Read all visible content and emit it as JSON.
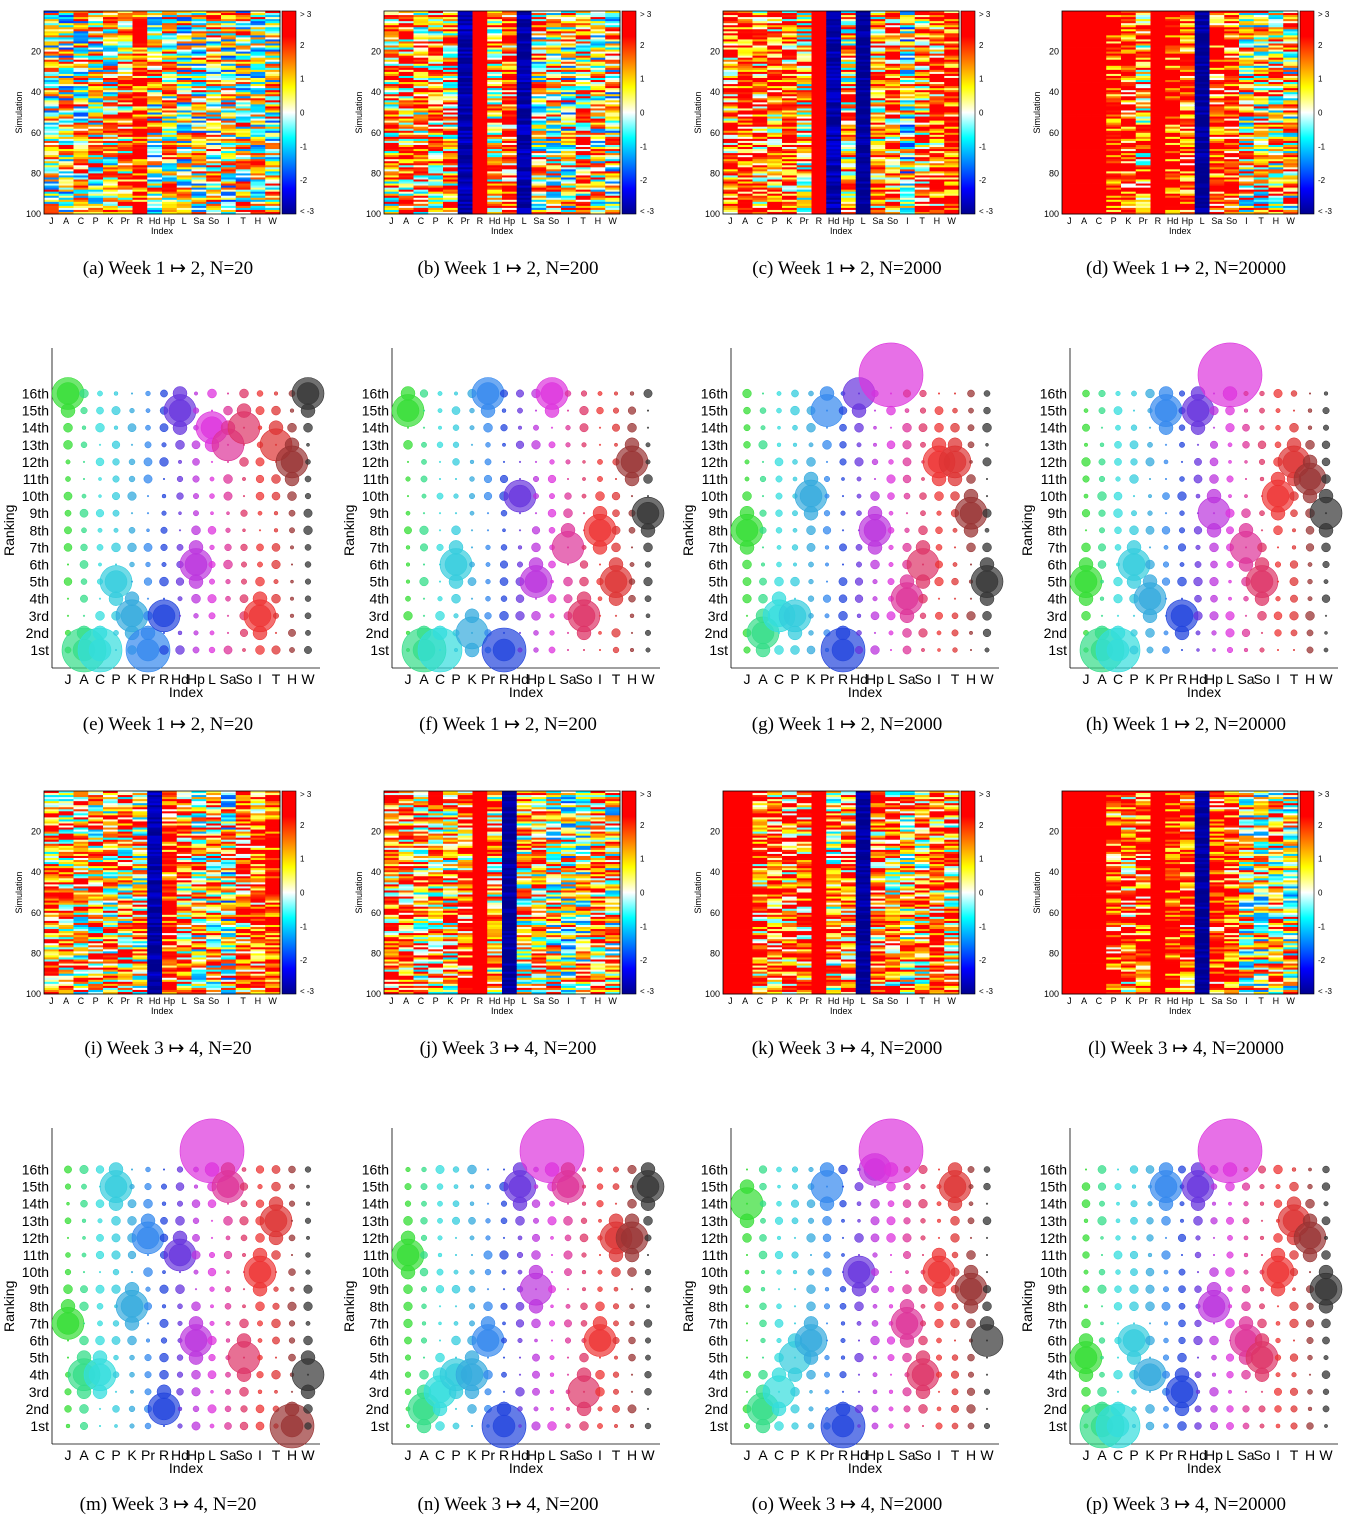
{
  "figure": {
    "index_labels": [
      "J",
      "A",
      "C",
      "P",
      "K",
      "Pr",
      "R",
      "Hd",
      "Hp",
      "L",
      "Sa",
      "So",
      "I",
      "T",
      "H",
      "W"
    ],
    "rank_labels": [
      "1st",
      "2nd",
      "3rd",
      "4th",
      "5th",
      "6th",
      "7th",
      "8th",
      "9th",
      "10th",
      "11th",
      "12th",
      "13th",
      "14th",
      "15th",
      "16th"
    ],
    "index_colors": [
      "#33dd33",
      "#33dd88",
      "#33dddd",
      "#33ccdd",
      "#33aadd",
      "#3388ee",
      "#2244dd",
      "#6633dd",
      "#bb33dd",
      "#dd33dd",
      "#dd3399",
      "#dd3366",
      "#ee3333",
      "#dd3333",
      "#993333",
      "#333333"
    ],
    "heatmap_x_label": "Index",
    "heatmap_y_label": "Simulation",
    "heatmap_y_ticks": [
      "20",
      "40",
      "60",
      "80",
      "100"
    ],
    "colorbar_ticks": [
      "> 3",
      "2",
      "1",
      "0",
      "-1",
      "-2",
      "< -3"
    ],
    "bubble_x_label": "Index",
    "bubble_y_label": "Ranking"
  },
  "panels": [
    {
      "id": "a",
      "kind": "heatmap",
      "caption": "(a)  Week 1 ↦ 2, N=20",
      "heatmap_bias": [
        0.2,
        0.2,
        0.3,
        0.5,
        0.6,
        1.2,
        2.5,
        0.4,
        0.8,
        0.2,
        0.3,
        0.4,
        0.2,
        0.3,
        0.3,
        0.3
      ]
    },
    {
      "id": "b",
      "kind": "heatmap",
      "caption": "(b)  Week 1 ↦ 2, N=200",
      "heatmap_bias": [
        0.8,
        1.2,
        1.0,
        1.0,
        1.0,
        -2.8,
        2.8,
        1.0,
        1.8,
        -2.8,
        0.5,
        0.5,
        0.3,
        1.0,
        0.5,
        0.3
      ]
    },
    {
      "id": "c",
      "kind": "heatmap",
      "caption": "(c)  Week 1 ↦ 2, N=2000",
      "heatmap_bias": [
        1.5,
        2.0,
        1.5,
        1.5,
        1.5,
        1.0,
        3.0,
        -2.8,
        1.0,
        -3.0,
        1.2,
        1.5,
        0.0,
        1.2,
        1.5,
        2.0
      ]
    },
    {
      "id": "d",
      "kind": "heatmap",
      "caption": "(d)  Week 1 ↦ 2, N=20000",
      "heatmap_bias": [
        3.0,
        3.0,
        3.0,
        2.5,
        2.0,
        1.2,
        3.0,
        2.5,
        2.0,
        -3.0,
        2.0,
        2.0,
        0.6,
        0.6,
        0.8,
        0.6
      ]
    },
    {
      "id": "e",
      "kind": "bubble",
      "caption": "(e)  Week 1 ↦ 2, N=20",
      "bubble_ranks": [
        16,
        1,
        1,
        5,
        3,
        1,
        3,
        15,
        6,
        14,
        13,
        14,
        3,
        13,
        12,
        16
      ]
    },
    {
      "id": "f",
      "kind": "bubble",
      "caption": "(f)  Week 1 ↦ 2, N=200",
      "bubble_ranks": [
        15,
        1,
        1,
        6,
        2,
        16,
        1,
        10,
        5,
        16,
        7,
        3,
        8,
        5,
        12,
        9
      ]
    },
    {
      "id": "g",
      "kind": "bubble",
      "caption": "(g)  Week 1 ↦ 2, N=2000",
      "bubble_ranks": [
        8,
        2,
        3,
        3,
        10,
        15,
        1,
        16,
        8,
        17,
        4,
        6,
        12,
        12,
        9,
        5
      ]
    },
    {
      "id": "h",
      "kind": "bubble",
      "caption": "(h)  Week 1 ↦ 2, N=20000",
      "bubble_ranks": [
        5,
        1,
        1,
        6,
        4,
        15,
        3,
        15,
        9,
        17,
        7,
        5,
        10,
        12,
        11,
        9
      ]
    },
    {
      "id": "i",
      "kind": "heatmap",
      "caption": "(i)  Week 3 ↦ 4, N=20",
      "heatmap_bias": [
        1.2,
        1.0,
        0.8,
        0.8,
        0.8,
        0.8,
        0.8,
        -2.8,
        2.0,
        1.2,
        0.6,
        0.8,
        0.2,
        1.5,
        1.8,
        2.5
      ]
    },
    {
      "id": "j",
      "kind": "heatmap",
      "caption": "(j)  Week 3 ↦ 4, N=200",
      "heatmap_bias": [
        1.5,
        1.5,
        1.0,
        1.2,
        1.0,
        1.5,
        3.0,
        1.0,
        -3.0,
        0.8,
        1.0,
        0.5,
        0.2,
        0.5,
        1.2,
        0.5
      ]
    },
    {
      "id": "k",
      "kind": "heatmap",
      "caption": "(k)  Week 3 ↦ 4, N=2000",
      "heatmap_bias": [
        3.0,
        3.0,
        1.5,
        1.5,
        1.5,
        1.5,
        3.0,
        1.0,
        1.5,
        -3.0,
        1.5,
        1.0,
        0.8,
        1.0,
        1.5,
        1.2
      ]
    },
    {
      "id": "l",
      "kind": "heatmap",
      "caption": "(l)  Week 3 ↦ 4, N=20000",
      "heatmap_bias": [
        3.0,
        3.0,
        3.0,
        2.0,
        1.5,
        2.0,
        3.0,
        2.5,
        2.0,
        -3.0,
        2.0,
        2.0,
        0.5,
        0.5,
        0.8,
        0.5
      ]
    },
    {
      "id": "m",
      "kind": "bubble",
      "caption": "(m)  Week 3 ↦ 4, N=20",
      "bubble_ranks": [
        7,
        4,
        4,
        15,
        8,
        12,
        2,
        11,
        6,
        17,
        15,
        5,
        10,
        13,
        1,
        4
      ]
    },
    {
      "id": "n",
      "kind": "bubble",
      "caption": "(n)  Week 3 ↦ 4, N=200",
      "bubble_ranks": [
        11,
        2,
        3,
        4,
        4,
        6,
        1,
        15,
        9,
        17,
        15,
        3,
        6,
        12,
        12,
        15
      ]
    },
    {
      "id": "o",
      "kind": "bubble",
      "caption": "(o)  Week 3 ↦ 4, N=2000",
      "bubble_ranks": [
        14,
        2,
        3,
        5,
        6,
        15,
        1,
        10,
        16,
        17,
        7,
        4,
        10,
        15,
        9,
        6
      ]
    },
    {
      "id": "p",
      "kind": "bubble",
      "caption": "(p)  Week 3 ↦ 4, N=20000",
      "bubble_ranks": [
        5,
        1,
        1,
        6,
        4,
        15,
        3,
        15,
        8,
        17,
        6,
        5,
        10,
        13,
        12,
        9
      ]
    }
  ]
}
